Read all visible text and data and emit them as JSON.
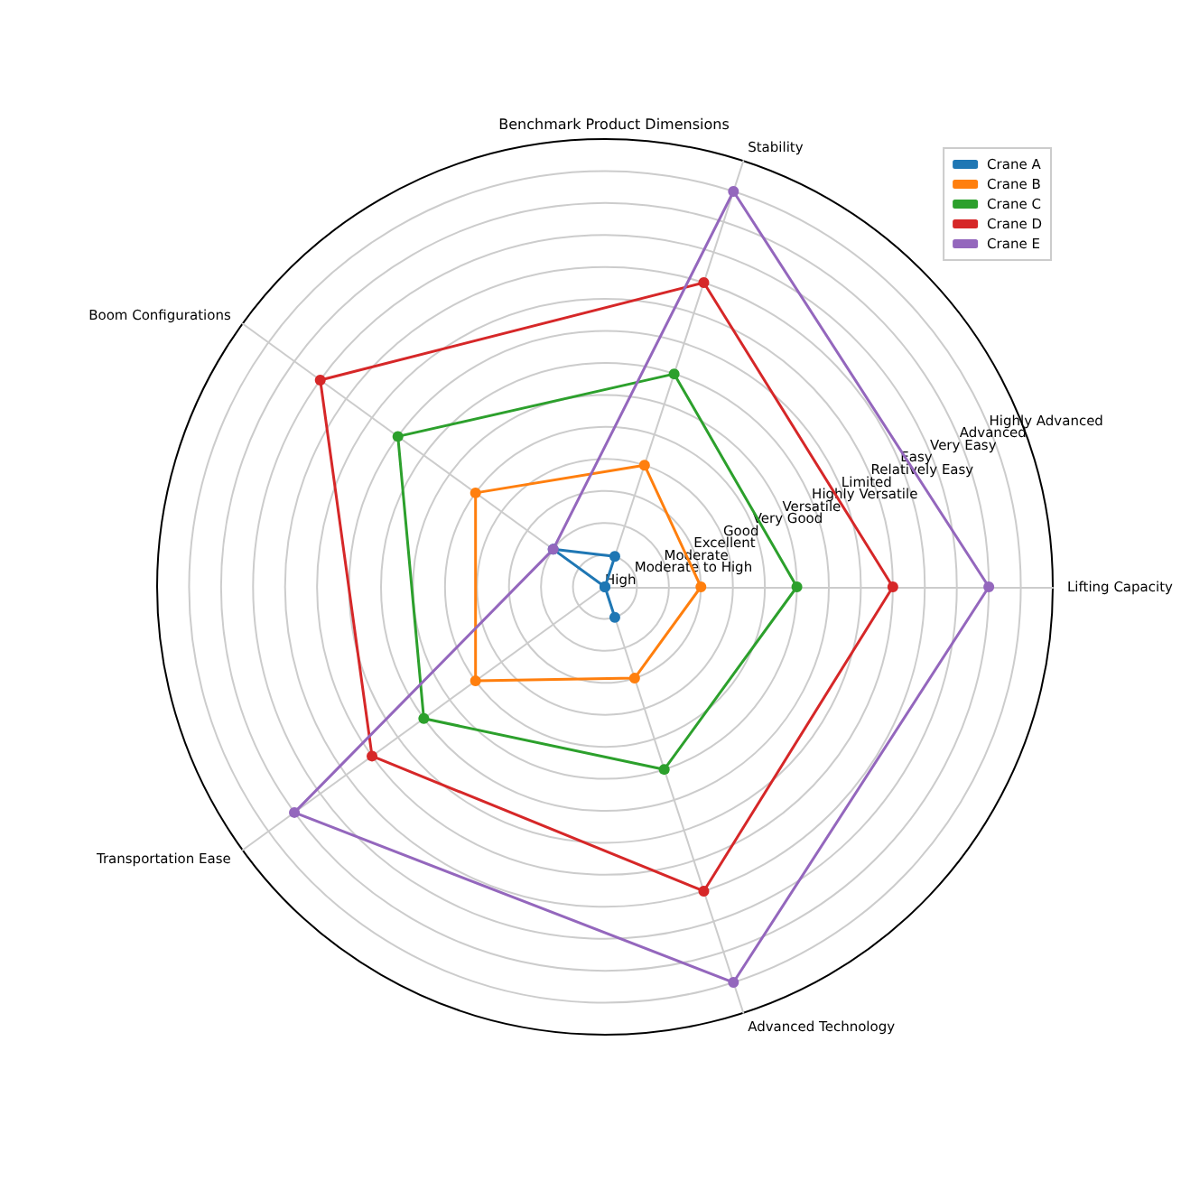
{
  "chart_data": {
    "type": "radar",
    "title": "Benchmark Product Dimensions",
    "categories": [
      "Stability",
      "Lifting Capacity",
      "Advanced Technology",
      "Transportation Ease",
      "Boom Configurations"
    ],
    "series": [
      {
        "name": "Crane A",
        "color": "#1f77b4",
        "values": [
          1,
          0,
          1,
          0,
          2
        ]
      },
      {
        "name": "Crane B",
        "color": "#ff7f0e",
        "values": [
          4,
          3,
          3,
          5,
          5
        ]
      },
      {
        "name": "Crane C",
        "color": "#2ca02c",
        "values": [
          7,
          6,
          6,
          7,
          8
        ]
      },
      {
        "name": "Crane D",
        "color": "#d62728",
        "values": [
          10,
          9,
          10,
          9,
          11
        ]
      },
      {
        "name": "Crane E",
        "color": "#9467bd",
        "values": [
          13,
          12,
          13,
          12,
          2
        ]
      }
    ],
    "ylim": [
      0,
      14
    ],
    "yticks": [
      {
        "value": 0,
        "label": "High"
      },
      {
        "value": 1,
        "label": "Moderate to High"
      },
      {
        "value": 2,
        "label": "Moderate"
      },
      {
        "value": 3,
        "label": "Excellent"
      },
      {
        "value": 4,
        "label": "Good"
      },
      {
        "value": 5,
        "label": "Very Good"
      },
      {
        "value": 6,
        "label": "Versatile"
      },
      {
        "value": 7,
        "label": "Highly Versatile"
      },
      {
        "value": 8,
        "label": "Limited"
      },
      {
        "value": 9,
        "label": "Relatively Easy"
      },
      {
        "value": 10,
        "label": "Easy"
      },
      {
        "value": 11,
        "label": "Very Easy"
      },
      {
        "value": 12,
        "label": "Advanced"
      },
      {
        "value": 13,
        "label": "Highly Advanced"
      }
    ],
    "grid": true,
    "legend": "top right",
    "marker": "circle",
    "line_style": "solid"
  }
}
